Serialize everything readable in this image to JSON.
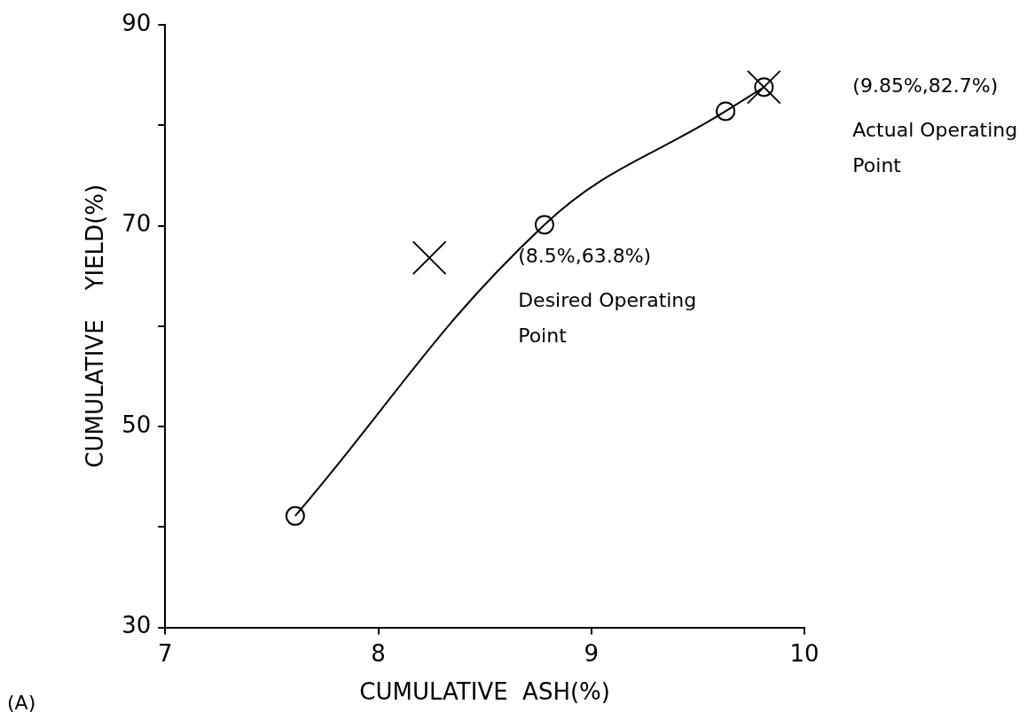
{
  "chart_data": {
    "type": "line",
    "xlabel": "CUMULATIVE  ASH(%)",
    "ylabel": "CUMULATIVE    YIELD(%)",
    "x": [
      7.61,
      8.78,
      9.63,
      9.81
    ],
    "series": [
      {
        "color": "#000000",
        "values": [
          41.1,
          70.1,
          81.4,
          83.8
        ]
      },
      {
        "type": "scatter",
        "marker": "cross",
        "color": "#000000",
        "x": [
          8.24,
          9.81
        ],
        "values": [
          66.8,
          83.8
        ]
      }
    ],
    "xlim": [
      7,
      10
    ],
    "xticks": [
      7,
      8,
      9,
      10
    ],
    "ylim": [
      30,
      90
    ],
    "yticks": [
      30,
      {
        "value": 40,
        "label": null
      },
      50,
      {
        "value": 60,
        "label": null
      },
      70,
      {
        "value": 80,
        "label": null
      },
      90
    ],
    "grid": false,
    "legend": false,
    "marker": "circle",
    "line_style": "solid",
    "annotations": [
      "(8.5%,63.8%)\nDesired Operating\nPoint",
      "(9.85%,82.7%)\nActual Operating\nPoint",
      "(A)"
    ]
  }
}
